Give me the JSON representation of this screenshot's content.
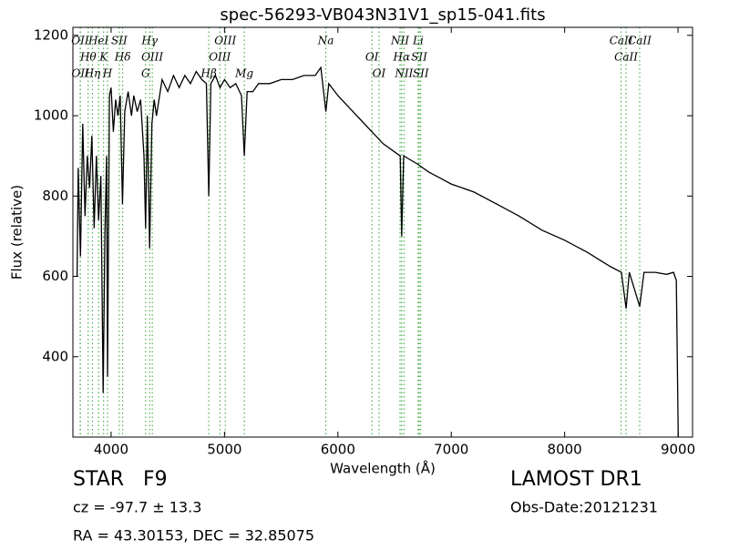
{
  "chart_data": {
    "type": "line",
    "title": "spec-56293-VB043N31V1_sp15-041.fits",
    "x_label": "Wavelength (Å)",
    "y_label": "Flux (relative)",
    "xlim": [
      3663,
      9128
    ],
    "ylim": [
      200,
      1220
    ],
    "xticks": [
      4000,
      5000,
      6000,
      7000,
      8000,
      9000
    ],
    "yticks": [
      400,
      600,
      800,
      1000,
      1200
    ],
    "color": "#000000",
    "line_color": "#2ca02c",
    "x": [
      3700,
      3710,
      3730,
      3750,
      3770,
      3790,
      3810,
      3830,
      3850,
      3870,
      3890,
      3910,
      3930,
      3945,
      3960,
      3968,
      3985,
      4000,
      4020,
      4040,
      4060,
      4080,
      4100,
      4120,
      4150,
      4180,
      4200,
      4230,
      4260,
      4290,
      4304,
      4320,
      4340,
      4360,
      4380,
      4400,
      4450,
      4500,
      4550,
      4600,
      4650,
      4700,
      4750,
      4800,
      4840,
      4861,
      4880,
      4920,
      4960,
      5000,
      5050,
      5100,
      5150,
      5175,
      5200,
      5250,
      5300,
      5400,
      5500,
      5600,
      5700,
      5800,
      5850,
      5894,
      5920,
      6000,
      6100,
      6200,
      6300,
      6400,
      6500,
      6550,
      6563,
      6580,
      6700,
      6800,
      6900,
      7000,
      7200,
      7400,
      7600,
      7800,
      8000,
      8200,
      8400,
      8500,
      8542,
      8570,
      8662,
      8700,
      8800,
      8900,
      8960,
      8985,
      9002
    ],
    "values": [
      600,
      870,
      650,
      980,
      750,
      900,
      820,
      950,
      720,
      900,
      740,
      850,
      310,
      700,
      900,
      350,
      1050,
      1070,
      960,
      1040,
      1000,
      1050,
      780,
      1010,
      1060,
      1000,
      1050,
      1010,
      1040,
      900,
      720,
      1000,
      670,
      980,
      1040,
      1000,
      1090,
      1060,
      1100,
      1070,
      1100,
      1080,
      1110,
      1090,
      1080,
      800,
      1080,
      1100,
      1070,
      1090,
      1070,
      1080,
      1050,
      900,
      1060,
      1060,
      1080,
      1080,
      1090,
      1090,
      1100,
      1100,
      1120,
      1010,
      1080,
      1050,
      1020,
      990,
      960,
      930,
      910,
      900,
      700,
      900,
      880,
      860,
      845,
      830,
      810,
      780,
      750,
      715,
      690,
      660,
      625,
      610,
      520,
      610,
      525,
      610,
      610,
      605,
      610,
      590,
      200
    ],
    "lines": [
      {
        "label": "OII",
        "x": 3727
      },
      {
        "label": "Hθ",
        "x": 3798
      },
      {
        "label": "OII",
        "x": 3729
      },
      {
        "label": "HeI",
        "x": 3889
      },
      {
        "label": "K",
        "x": 3934
      },
      {
        "label": "Hη",
        "x": 3835
      },
      {
        "label": "SII",
        "x": 4072
      },
      {
        "label": "Hδ",
        "x": 4102
      },
      {
        "label": "H",
        "x": 3968
      },
      {
        "label": "Hγ",
        "x": 4340
      },
      {
        "label": "OIII",
        "x": 4363
      },
      {
        "label": "G",
        "x": 4304
      },
      {
        "label": "OIII",
        "x": 5007
      },
      {
        "label": "OIII",
        "x": 4959
      },
      {
        "label": "Hβ",
        "x": 4861
      },
      {
        "label": "Na",
        "x": 5894
      },
      {
        "label": "OI",
        "x": 6300
      },
      {
        "label": "Mg",
        "x": 5175
      },
      {
        "label": "NII",
        "x": 6548
      },
      {
        "label": "Hα",
        "x": 6563
      },
      {
        "label": "OI",
        "x": 6363
      },
      {
        "label": "Li",
        "x": 6708
      },
      {
        "label": "SII",
        "x": 6717
      },
      {
        "label": "NII",
        "x": 6583
      },
      {
        "label": "CaII",
        "x": 8498
      },
      {
        "label": "CaII",
        "x": 8542
      },
      {
        "label": "SII",
        "x": 6731
      },
      {
        "label": "CaII",
        "x": 8662
      }
    ]
  },
  "footer": {
    "class": "STAR   F9",
    "cz": "cz = -97.7 ± 13.3",
    "coords": "RA = 43.30153, DEC = 32.85075",
    "survey": "LAMOST DR1",
    "date": "Obs-Date:20121231"
  }
}
